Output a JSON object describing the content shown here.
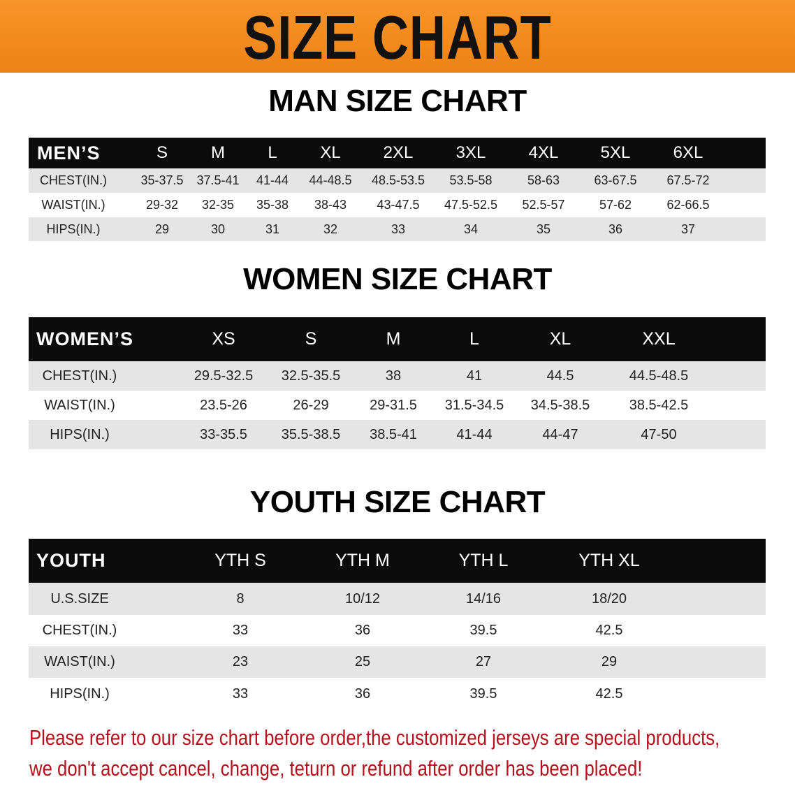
{
  "banner": {
    "title": "SIZE CHART",
    "color": "#f08a1e"
  },
  "men": {
    "title": "MAN SIZE CHART",
    "header": [
      "MEN’S",
      "S",
      "M",
      "L",
      "XL",
      "2XL",
      "3XL",
      "4XL",
      "5XL",
      "6XL"
    ],
    "rows": [
      [
        "CHEST(IN.)",
        "35-37.5",
        "37.5-41",
        "41-44",
        "44-48.5",
        "48.5-53.5",
        "53.5-58",
        "58-63",
        "63-67.5",
        "67.5-72"
      ],
      [
        "WAIST(IN.)",
        "29-32",
        "32-35",
        "35-38",
        "38-43",
        "43-47.5",
        "47.5-52.5",
        "52.5-57",
        "57-62",
        "62-66.5"
      ],
      [
        "HIPS(IN.)",
        "29",
        "30",
        "31",
        "32",
        "33",
        "34",
        "35",
        "36",
        "37"
      ]
    ]
  },
  "women": {
    "title": "WOMEN SIZE CHART",
    "header": [
      "WOMEN’S",
      "XS",
      "S",
      "M",
      "L",
      "XL",
      "XXL"
    ],
    "rows": [
      [
        "CHEST(IN.)",
        "29.5-32.5",
        "32.5-35.5",
        "38",
        "41",
        "44.5",
        "44.5-48.5"
      ],
      [
        "WAIST(IN.)",
        "23.5-26",
        "26-29",
        "29-31.5",
        "31.5-34.5",
        "34.5-38.5",
        "38.5-42.5"
      ],
      [
        "HIPS(IN.)",
        "33-35.5",
        "35.5-38.5",
        "38.5-41",
        "41-44",
        "44-47",
        "47-50"
      ]
    ]
  },
  "youth": {
    "title": "YOUTH SIZE CHART",
    "header": [
      "YOUTH",
      "YTH S",
      "YTH M",
      "YTH L",
      "YTH XL"
    ],
    "rows": [
      [
        "U.S.SIZE",
        "8",
        "10/12",
        "14/16",
        "18/20"
      ],
      [
        "CHEST(IN.)",
        "33",
        "36",
        "39.5",
        "42.5"
      ],
      [
        "WAIST(IN.)",
        "23",
        "25",
        "27",
        "29"
      ],
      [
        "HIPS(IN.)",
        "33",
        "36",
        "39.5",
        "42.5"
      ]
    ]
  },
  "notice": {
    "line1": "Please refer to our size chart before order,the customized jerseys are special products,",
    "line2": "we don't accept cancel, change, teturn or refund after order has been placed!",
    "color": "#b3121d"
  }
}
